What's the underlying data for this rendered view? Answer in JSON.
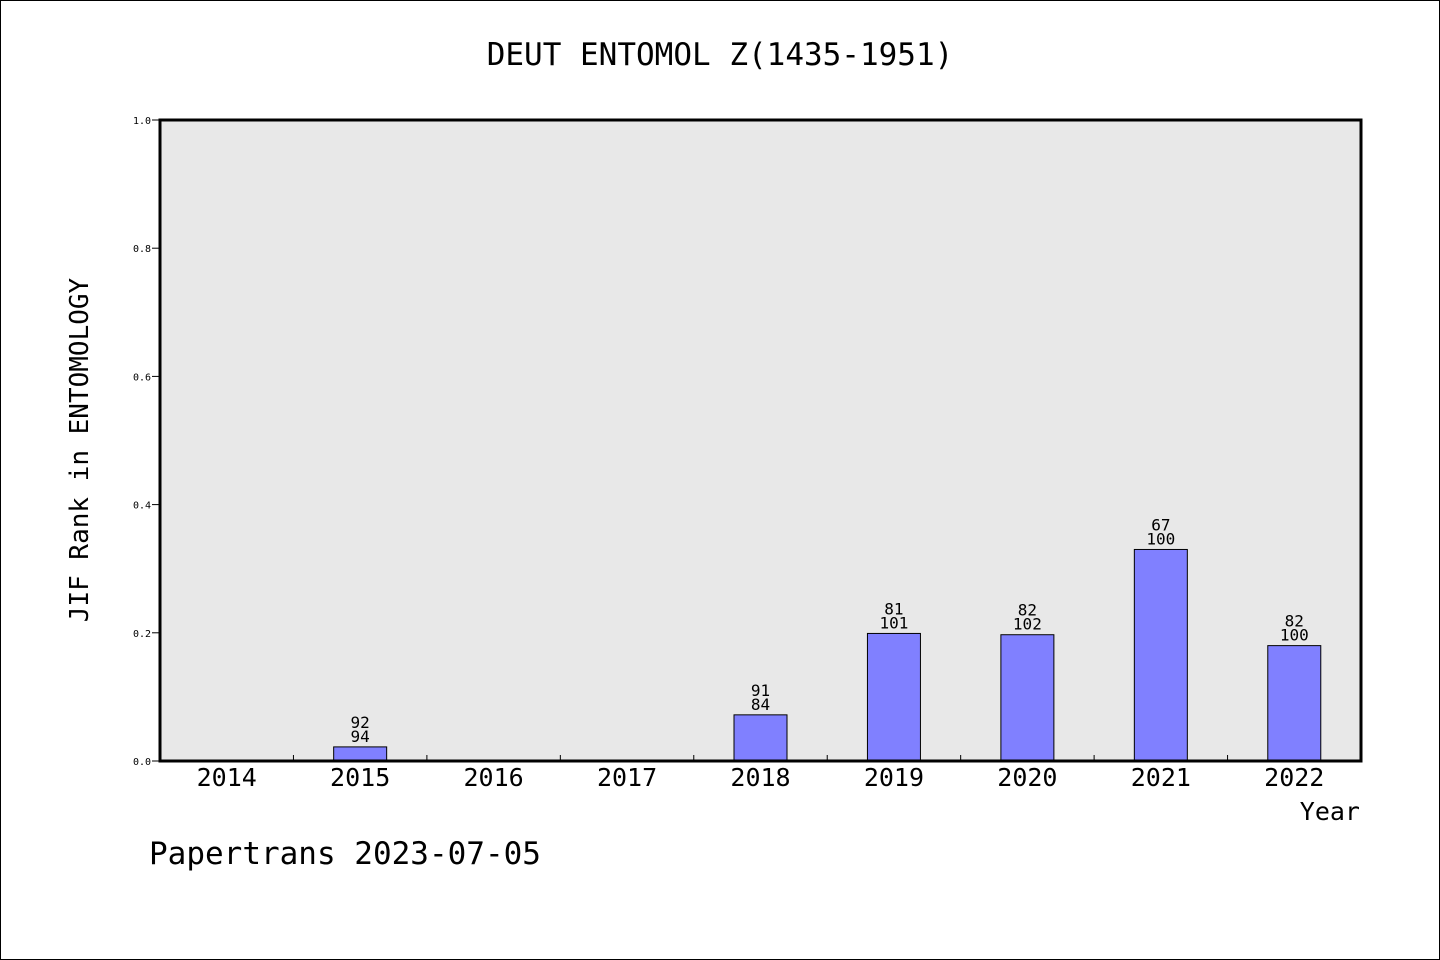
{
  "chart_data": {
    "type": "bar",
    "title": "DEUT ENTOMOL Z(1435-1951)",
    "xlabel": "Year",
    "ylabel": "JIF Rank in ENTOMOLOGY",
    "categories": [
      "2014",
      "2015",
      "2016",
      "2017",
      "2018",
      "2019",
      "2020",
      "2021",
      "2022"
    ],
    "values": [
      0,
      0.022,
      0,
      0,
      0.072,
      0.199,
      0.197,
      0.33,
      0.18
    ],
    "bar_labels": [
      [
        "",
        ""
      ],
      [
        "92",
        "94"
      ],
      [
        "",
        ""
      ],
      [
        "",
        ""
      ],
      [
        "91",
        "84"
      ],
      [
        "81",
        "101"
      ],
      [
        "82",
        "102"
      ],
      [
        "67",
        "100"
      ],
      [
        "82",
        "100"
      ]
    ],
    "ylim": [
      0,
      1.0
    ],
    "yticks": [
      0.0,
      0.2,
      0.4,
      0.6,
      0.8,
      1.0
    ],
    "ytick_labels": [
      "0.0",
      "0.2",
      "0.4",
      "0.6",
      "0.8",
      "1.0"
    ],
    "grid": false,
    "colors": {
      "bar": "#8080ff",
      "plot_background": "#e8e8e8",
      "axis": "#000000"
    }
  },
  "footer": {
    "text": "Papertrans 2023-07-05"
  }
}
